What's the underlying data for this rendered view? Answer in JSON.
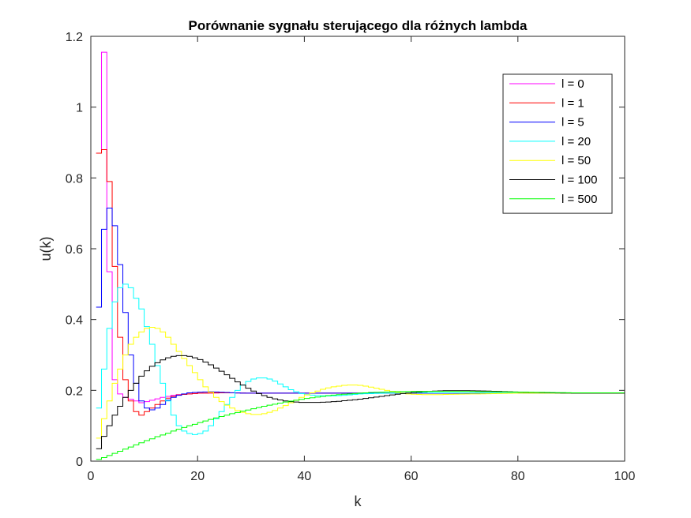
{
  "chart_data": {
    "type": "line",
    "step": true,
    "title": "Porównanie sygnału sterującego dla różnych lambda",
    "xlabel": "k",
    "ylabel": "u(k)",
    "xlim": [
      0,
      100
    ],
    "ylim": [
      0,
      1.2
    ],
    "xticks": [
      "0",
      "20",
      "40",
      "60",
      "80",
      "100"
    ],
    "yticks": [
      "0",
      "0.2",
      "0.4",
      "0.6",
      "0.8",
      "1",
      "1.2"
    ],
    "grid": false,
    "legend_position": "top-right",
    "series": [
      {
        "name": "l = 0",
        "color": "#ff00ff",
        "points": [
          [
            1,
            0.87
          ],
          [
            2,
            1.155
          ],
          [
            3,
            0.535
          ],
          [
            4,
            0.23
          ],
          [
            5,
            0.19
          ],
          [
            6,
            0.18
          ],
          [
            7,
            0.175
          ],
          [
            8,
            0.17
          ],
          [
            9,
            0.165
          ],
          [
            10,
            0.168
          ],
          [
            11,
            0.172
          ],
          [
            12,
            0.176
          ],
          [
            13,
            0.18
          ],
          [
            14,
            0.183
          ],
          [
            15,
            0.186
          ],
          [
            16,
            0.188
          ],
          [
            18,
            0.19
          ],
          [
            20,
            0.192
          ],
          [
            25,
            0.193
          ],
          [
            30,
            0.192
          ],
          [
            100,
            0.192
          ]
        ]
      },
      {
        "name": "l = 1",
        "color": "#ff0000",
        "points": [
          [
            1,
            0.87
          ],
          [
            2,
            0.88
          ],
          [
            3,
            0.79
          ],
          [
            4,
            0.55
          ],
          [
            5,
            0.35
          ],
          [
            6,
            0.23
          ],
          [
            7,
            0.17
          ],
          [
            8,
            0.14
          ],
          [
            9,
            0.13
          ],
          [
            10,
            0.14
          ],
          [
            11,
            0.15
          ],
          [
            12,
            0.16
          ],
          [
            13,
            0.17
          ],
          [
            14,
            0.178
          ],
          [
            15,
            0.183
          ],
          [
            16,
            0.187
          ],
          [
            18,
            0.19
          ],
          [
            20,
            0.192
          ],
          [
            25,
            0.193
          ],
          [
            30,
            0.192
          ],
          [
            100,
            0.192
          ]
        ]
      },
      {
        "name": "l = 5",
        "color": "#0000ff",
        "points": [
          [
            1,
            0.435
          ],
          [
            2,
            0.655
          ],
          [
            3,
            0.715
          ],
          [
            4,
            0.665
          ],
          [
            5,
            0.555
          ],
          [
            6,
            0.42
          ],
          [
            7,
            0.3
          ],
          [
            8,
            0.22
          ],
          [
            9,
            0.17
          ],
          [
            10,
            0.15
          ],
          [
            11,
            0.145
          ],
          [
            12,
            0.15
          ],
          [
            13,
            0.16
          ],
          [
            14,
            0.172
          ],
          [
            15,
            0.18
          ],
          [
            16,
            0.186
          ],
          [
            17,
            0.19
          ],
          [
            18,
            0.193
          ],
          [
            20,
            0.195
          ],
          [
            22,
            0.196
          ],
          [
            25,
            0.194
          ],
          [
            28,
            0.192
          ],
          [
            32,
            0.192
          ],
          [
            100,
            0.192
          ]
        ]
      },
      {
        "name": "l = 20",
        "color": "#00ffff",
        "points": [
          [
            1,
            0.15
          ],
          [
            2,
            0.26
          ],
          [
            3,
            0.375
          ],
          [
            4,
            0.45
          ],
          [
            5,
            0.49
          ],
          [
            6,
            0.5
          ],
          [
            7,
            0.49
          ],
          [
            8,
            0.46
          ],
          [
            9,
            0.43
          ],
          [
            10,
            0.38
          ],
          [
            11,
            0.33
          ],
          [
            12,
            0.27
          ],
          [
            13,
            0.22
          ],
          [
            14,
            0.17
          ],
          [
            15,
            0.13
          ],
          [
            16,
            0.1
          ],
          [
            17,
            0.085
          ],
          [
            18,
            0.078
          ],
          [
            19,
            0.075
          ],
          [
            20,
            0.078
          ],
          [
            21,
            0.085
          ],
          [
            22,
            0.1
          ],
          [
            23,
            0.12
          ],
          [
            24,
            0.14
          ],
          [
            25,
            0.16
          ],
          [
            26,
            0.18
          ],
          [
            27,
            0.2
          ],
          [
            28,
            0.215
          ],
          [
            29,
            0.225
          ],
          [
            30,
            0.232
          ],
          [
            31,
            0.235
          ],
          [
            32,
            0.235
          ],
          [
            33,
            0.232
          ],
          [
            34,
            0.226
          ],
          [
            35,
            0.218
          ],
          [
            36,
            0.21
          ],
          [
            37,
            0.202
          ],
          [
            38,
            0.196
          ],
          [
            39,
            0.191
          ],
          [
            40,
            0.188
          ],
          [
            42,
            0.185
          ],
          [
            44,
            0.184
          ],
          [
            46,
            0.185
          ],
          [
            48,
            0.187
          ],
          [
            50,
            0.19
          ],
          [
            55,
            0.192
          ],
          [
            60,
            0.193
          ],
          [
            100,
            0.192
          ]
        ]
      },
      {
        "name": "l = 50",
        "color": "#ffff00",
        "points": [
          [
            1,
            0.065
          ],
          [
            2,
            0.12
          ],
          [
            3,
            0.17
          ],
          [
            4,
            0.22
          ],
          [
            5,
            0.26
          ],
          [
            6,
            0.3
          ],
          [
            7,
            0.33
          ],
          [
            8,
            0.35
          ],
          [
            9,
            0.365
          ],
          [
            10,
            0.375
          ],
          [
            11,
            0.378
          ],
          [
            12,
            0.375
          ],
          [
            13,
            0.365
          ],
          [
            14,
            0.35
          ],
          [
            15,
            0.33
          ],
          [
            16,
            0.31
          ],
          [
            17,
            0.29
          ],
          [
            18,
            0.27
          ],
          [
            19,
            0.25
          ],
          [
            20,
            0.23
          ],
          [
            21,
            0.21
          ],
          [
            22,
            0.195
          ],
          [
            23,
            0.18
          ],
          [
            24,
            0.168
          ],
          [
            25,
            0.158
          ],
          [
            26,
            0.15
          ],
          [
            27,
            0.143
          ],
          [
            28,
            0.138
          ],
          [
            29,
            0.134
          ],
          [
            30,
            0.132
          ],
          [
            31,
            0.132
          ],
          [
            32,
            0.134
          ],
          [
            33,
            0.138
          ],
          [
            34,
            0.143
          ],
          [
            35,
            0.15
          ],
          [
            36,
            0.157
          ],
          [
            37,
            0.165
          ],
          [
            38,
            0.172
          ],
          [
            39,
            0.18
          ],
          [
            40,
            0.187
          ],
          [
            41,
            0.193
          ],
          [
            42,
            0.198
          ],
          [
            43,
            0.203
          ],
          [
            44,
            0.207
          ],
          [
            45,
            0.21
          ],
          [
            46,
            0.212
          ],
          [
            47,
            0.214
          ],
          [
            48,
            0.215
          ],
          [
            49,
            0.215
          ],
          [
            50,
            0.214
          ],
          [
            51,
            0.212
          ],
          [
            52,
            0.209
          ],
          [
            53,
            0.206
          ],
          [
            54,
            0.203
          ],
          [
            55,
            0.2
          ],
          [
            56,
            0.197
          ],
          [
            57,
            0.194
          ],
          [
            58,
            0.192
          ],
          [
            59,
            0.19
          ],
          [
            60,
            0.189
          ],
          [
            62,
            0.188
          ],
          [
            65,
            0.188
          ],
          [
            68,
            0.189
          ],
          [
            72,
            0.19
          ],
          [
            76,
            0.191
          ],
          [
            80,
            0.192
          ],
          [
            100,
            0.192
          ]
        ]
      },
      {
        "name": "l = 100",
        "color": "#000000",
        "points": [
          [
            1,
            0.035
          ],
          [
            2,
            0.07
          ],
          [
            3,
            0.1
          ],
          [
            4,
            0.13
          ],
          [
            5,
            0.155
          ],
          [
            6,
            0.18
          ],
          [
            7,
            0.2
          ],
          [
            8,
            0.22
          ],
          [
            9,
            0.24
          ],
          [
            10,
            0.255
          ],
          [
            11,
            0.268
          ],
          [
            12,
            0.278
          ],
          [
            13,
            0.286
          ],
          [
            14,
            0.292
          ],
          [
            15,
            0.296
          ],
          [
            16,
            0.298
          ],
          [
            17,
            0.298
          ],
          [
            18,
            0.296
          ],
          [
            19,
            0.292
          ],
          [
            20,
            0.287
          ],
          [
            21,
            0.28
          ],
          [
            22,
            0.272
          ],
          [
            23,
            0.263
          ],
          [
            24,
            0.254
          ],
          [
            25,
            0.244
          ],
          [
            26,
            0.234
          ],
          [
            27,
            0.224
          ],
          [
            28,
            0.215
          ],
          [
            29,
            0.206
          ],
          [
            30,
            0.198
          ],
          [
            31,
            0.191
          ],
          [
            32,
            0.185
          ],
          [
            33,
            0.18
          ],
          [
            34,
            0.176
          ],
          [
            35,
            0.173
          ],
          [
            36,
            0.17
          ],
          [
            37,
            0.168
          ],
          [
            38,
            0.167
          ],
          [
            39,
            0.166
          ],
          [
            40,
            0.166
          ],
          [
            42,
            0.166
          ],
          [
            44,
            0.167
          ],
          [
            46,
            0.169
          ],
          [
            48,
            0.172
          ],
          [
            50,
            0.175
          ],
          [
            52,
            0.179
          ],
          [
            54,
            0.183
          ],
          [
            56,
            0.187
          ],
          [
            58,
            0.191
          ],
          [
            60,
            0.194
          ],
          [
            62,
            0.196
          ],
          [
            64,
            0.198
          ],
          [
            66,
            0.199
          ],
          [
            70,
            0.199
          ],
          [
            74,
            0.198
          ],
          [
            78,
            0.196
          ],
          [
            82,
            0.194
          ],
          [
            86,
            0.193
          ],
          [
            90,
            0.192
          ],
          [
            100,
            0.192
          ]
        ]
      },
      {
        "name": "l = 500",
        "color": "#00ff00",
        "points": [
          [
            1,
            0.005
          ],
          [
            2,
            0.01
          ],
          [
            3,
            0.016
          ],
          [
            4,
            0.022
          ],
          [
            5,
            0.028
          ],
          [
            6,
            0.034
          ],
          [
            7,
            0.04
          ],
          [
            8,
            0.046
          ],
          [
            9,
            0.052
          ],
          [
            10,
            0.058
          ],
          [
            11,
            0.063
          ],
          [
            12,
            0.069
          ],
          [
            13,
            0.074
          ],
          [
            14,
            0.079
          ],
          [
            15,
            0.085
          ],
          [
            16,
            0.09
          ],
          [
            17,
            0.095
          ],
          [
            18,
            0.1
          ],
          [
            19,
            0.104
          ],
          [
            20,
            0.109
          ],
          [
            22,
            0.118
          ],
          [
            24,
            0.126
          ],
          [
            26,
            0.134
          ],
          [
            28,
            0.141
          ],
          [
            30,
            0.148
          ],
          [
            32,
            0.155
          ],
          [
            34,
            0.161
          ],
          [
            36,
            0.167
          ],
          [
            38,
            0.172
          ],
          [
            40,
            0.177
          ],
          [
            42,
            0.181
          ],
          [
            44,
            0.185
          ],
          [
            46,
            0.188
          ],
          [
            48,
            0.19
          ],
          [
            50,
            0.192
          ],
          [
            52,
            0.194
          ],
          [
            54,
            0.195
          ],
          [
            56,
            0.196
          ],
          [
            60,
            0.197
          ],
          [
            65,
            0.197
          ],
          [
            70,
            0.197
          ],
          [
            75,
            0.196
          ],
          [
            80,
            0.195
          ],
          [
            85,
            0.194
          ],
          [
            90,
            0.193
          ],
          [
            95,
            0.193
          ],
          [
            100,
            0.193
          ]
        ]
      }
    ]
  }
}
